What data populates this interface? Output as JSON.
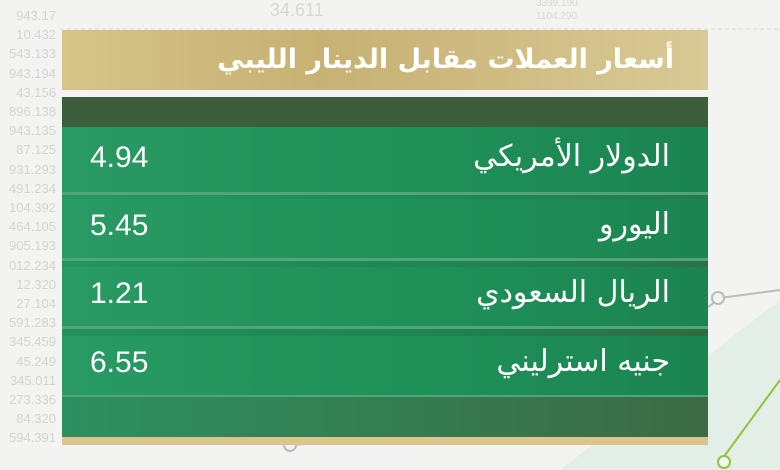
{
  "title": "أسعار العملات مقابل الدينار الليبي",
  "rates": [
    {
      "currency": "الدولار الأمريكي",
      "value": "4.94"
    },
    {
      "currency": "اليورو",
      "value": "5.45"
    },
    {
      "currency": "الريال السعودي",
      "value": "1.21"
    },
    {
      "currency": "جنيه استرليني",
      "value": "6.55"
    }
  ],
  "background_numbers": [
    "943.17",
    "10.432",
    "543.133",
    "943.194",
    "43.156",
    "896.138",
    "943.135",
    "87.125",
    "931.293",
    "491.234",
    "104.392",
    "464.105",
    "905.193",
    "012.234",
    "12.320",
    "27.104",
    "591.283",
    "345.459",
    "45.249",
    "345.011",
    "273.336",
    "84.320",
    "594.391"
  ],
  "background_top_numbers": [
    "34.611",
    "3399.190",
    "1104.290"
  ],
  "colors": {
    "header_gold": "#c7b173",
    "row_green": "#1f8f58",
    "band_dark": "#3c5e3d",
    "background": "#f3f4f2"
  }
}
